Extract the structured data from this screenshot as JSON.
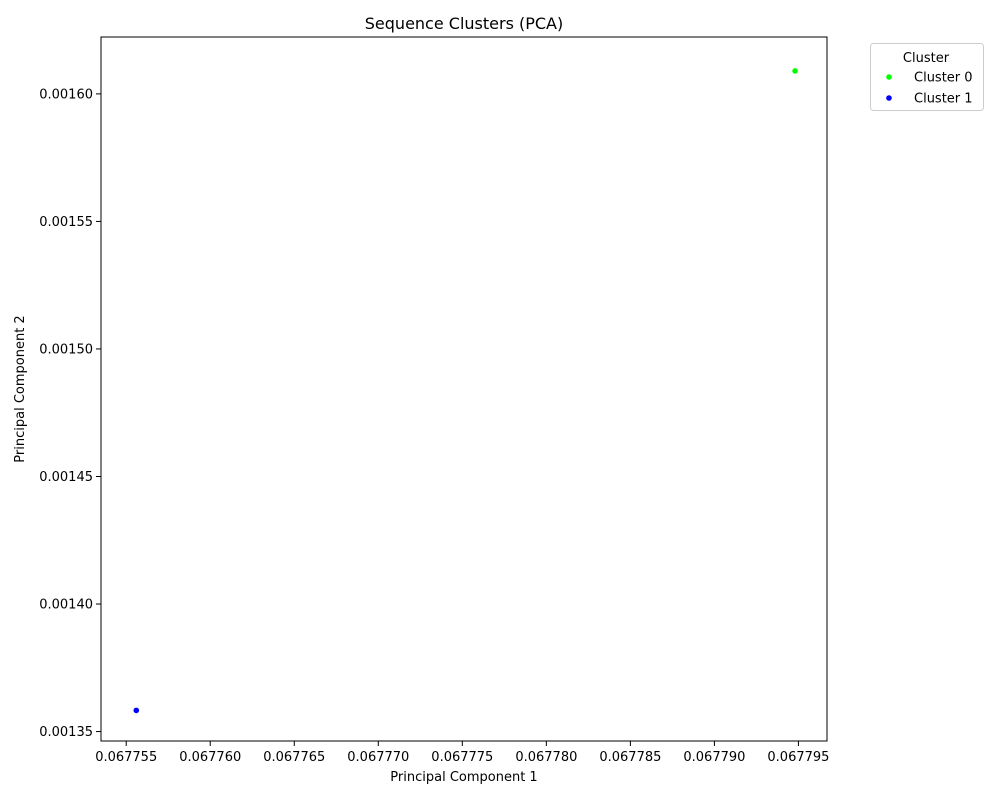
{
  "chart_data": {
    "type": "scatter",
    "title": "Sequence Clusters (PCA)",
    "xlabel": "Principal Component 1",
    "ylabel": "Principal Component 2",
    "xlim": [
      0.0677535,
      0.0677967
    ],
    "ylim": [
      0.0013463,
      0.0016223
    ],
    "x_ticks": [
      0.067755,
      0.06776,
      0.067765,
      0.06777,
      0.067775,
      0.06778,
      0.067785,
      0.06779,
      0.067795
    ],
    "x_tick_labels": [
      "0.067755",
      "0.067760",
      "0.067765",
      "0.067770",
      "0.067775",
      "0.067780",
      "0.067785",
      "0.067790",
      "0.067795"
    ],
    "y_ticks": [
      0.00135,
      0.0014,
      0.00145,
      0.0015,
      0.00155,
      0.0016
    ],
    "y_tick_labels": [
      "0.00135",
      "0.00140",
      "0.00145",
      "0.00150",
      "0.00155",
      "0.00160"
    ],
    "grid": false,
    "legend": {
      "title": "Cluster",
      "placement": "outside-top-right"
    },
    "series": [
      {
        "name": "Cluster 0",
        "color": "#00ff00",
        "points": [
          {
            "x": 0.0677948,
            "y": 0.001609
          }
        ]
      },
      {
        "name": "Cluster 1",
        "color": "#0000ff",
        "points": [
          {
            "x": 0.0677556,
            "y": 0.0013583
          }
        ]
      }
    ]
  }
}
